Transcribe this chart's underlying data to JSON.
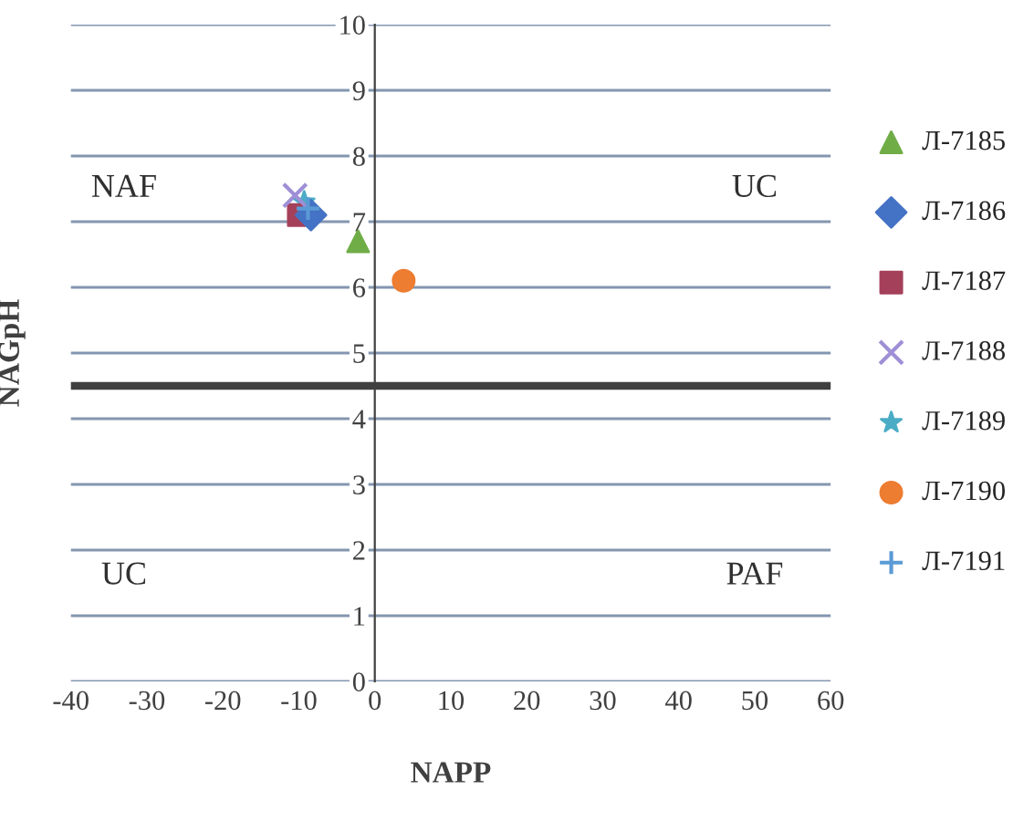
{
  "chart_data": {
    "type": "scatter",
    "xlabel": "NAPP",
    "ylabel": "NAGpH",
    "xlim": [
      -40,
      60
    ],
    "ylim": [
      0,
      10
    ],
    "xticks": [
      -40,
      -30,
      -20,
      -10,
      0,
      10,
      20,
      30,
      40,
      50,
      60
    ],
    "yticks": [
      0,
      1,
      2,
      3,
      4,
      5,
      6,
      7,
      8,
      9,
      10
    ],
    "grid": "y",
    "legend": "right",
    "series": [
      {
        "name": "Л-7185",
        "color": "#70ad47",
        "marker": "triangle",
        "x": [
          -2.2
        ],
        "values": [
          6.7
        ]
      },
      {
        "name": "Л-7186",
        "color": "#4472c4",
        "marker": "diamond",
        "x": [
          -8.4
        ],
        "values": [
          7.1
        ]
      },
      {
        "name": "Л-7187",
        "color": "#a5405a",
        "marker": "square",
        "x": [
          -10
        ],
        "values": [
          7.1
        ]
      },
      {
        "name": "Л-7188",
        "color": "#9e8fd6",
        "marker": "x",
        "x": [
          -10.5
        ],
        "values": [
          7.4
        ]
      },
      {
        "name": "Л-7189",
        "color": "#4bacc6",
        "marker": "star",
        "x": [
          -9.3
        ],
        "values": [
          7.3
        ]
      },
      {
        "name": "Л-7190",
        "color": "#ed7d31",
        "marker": "circle",
        "x": [
          3.8
        ],
        "values": [
          6.1
        ]
      },
      {
        "name": "Л-7191",
        "color": "#5b9bd5",
        "marker": "plus",
        "x": [
          -8.8
        ],
        "values": [
          7.2
        ]
      }
    ],
    "ref_lines": [
      {
        "axis": "y",
        "value": 4.5,
        "label": null,
        "color": "#404040"
      }
    ],
    "annotations": [
      "NAF",
      "UC",
      "UC",
      "PAF"
    ]
  }
}
